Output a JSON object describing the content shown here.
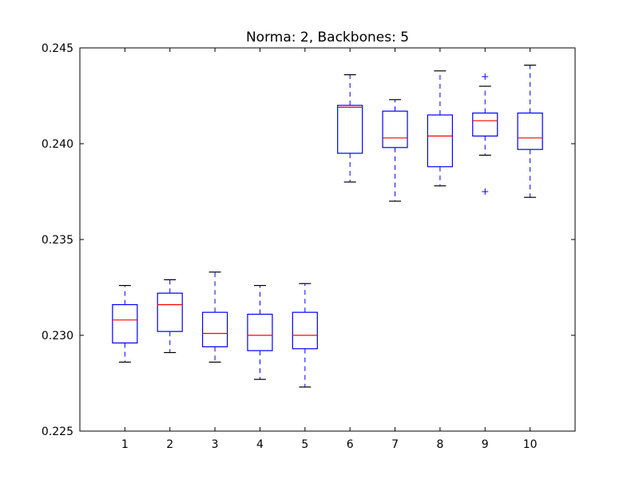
{
  "chart_data": {
    "type": "box",
    "title": "Norma: 2, Backbones: 5",
    "xlabel": "",
    "ylabel": "",
    "ylim": [
      0.225,
      0.245
    ],
    "yticks": [
      "0.225",
      "0.230",
      "0.235",
      "0.240",
      "0.245"
    ],
    "ytick_values": [
      0.225,
      0.23,
      0.235,
      0.24,
      0.245
    ],
    "categories": [
      "1",
      "2",
      "3",
      "4",
      "5",
      "6",
      "7",
      "8",
      "9",
      "10"
    ],
    "grid": false,
    "colors": {
      "box": "#0000ff",
      "median": "#ff0000",
      "whisker": "#0000ff",
      "cap": "#000000",
      "outlier": "#0000ff"
    },
    "boxes": [
      {
        "label": "1",
        "whisker_low": 0.2286,
        "q1": 0.2296,
        "median": 0.2308,
        "q3": 0.2316,
        "whisker_high": 0.2326,
        "outliers": []
      },
      {
        "label": "2",
        "whisker_low": 0.2291,
        "q1": 0.2302,
        "median": 0.2316,
        "q3": 0.2322,
        "whisker_high": 0.2329,
        "outliers": []
      },
      {
        "label": "3",
        "whisker_low": 0.2286,
        "q1": 0.2294,
        "median": 0.2301,
        "q3": 0.2312,
        "whisker_high": 0.2333,
        "outliers": []
      },
      {
        "label": "4",
        "whisker_low": 0.2277,
        "q1": 0.2292,
        "median": 0.23,
        "q3": 0.2311,
        "whisker_high": 0.2326,
        "outliers": []
      },
      {
        "label": "5",
        "whisker_low": 0.2273,
        "q1": 0.2293,
        "median": 0.23,
        "q3": 0.2312,
        "whisker_high": 0.2327,
        "outliers": []
      },
      {
        "label": "6",
        "whisker_low": 0.238,
        "q1": 0.2395,
        "median": 0.2419,
        "q3": 0.242,
        "whisker_high": 0.2436,
        "outliers": []
      },
      {
        "label": "7",
        "whisker_low": 0.237,
        "q1": 0.2398,
        "median": 0.2403,
        "q3": 0.2417,
        "whisker_high": 0.2423,
        "outliers": []
      },
      {
        "label": "8",
        "whisker_low": 0.2378,
        "q1": 0.2388,
        "median": 0.2404,
        "q3": 0.2415,
        "whisker_high": 0.2438,
        "outliers": []
      },
      {
        "label": "9",
        "whisker_low": 0.2394,
        "q1": 0.2404,
        "median": 0.2412,
        "q3": 0.2416,
        "whisker_high": 0.243,
        "outliers": [
          0.2435,
          0.2375
        ]
      },
      {
        "label": "10",
        "whisker_low": 0.2372,
        "q1": 0.2397,
        "median": 0.2403,
        "q3": 0.2416,
        "whisker_high": 0.2441,
        "outliers": []
      }
    ]
  }
}
